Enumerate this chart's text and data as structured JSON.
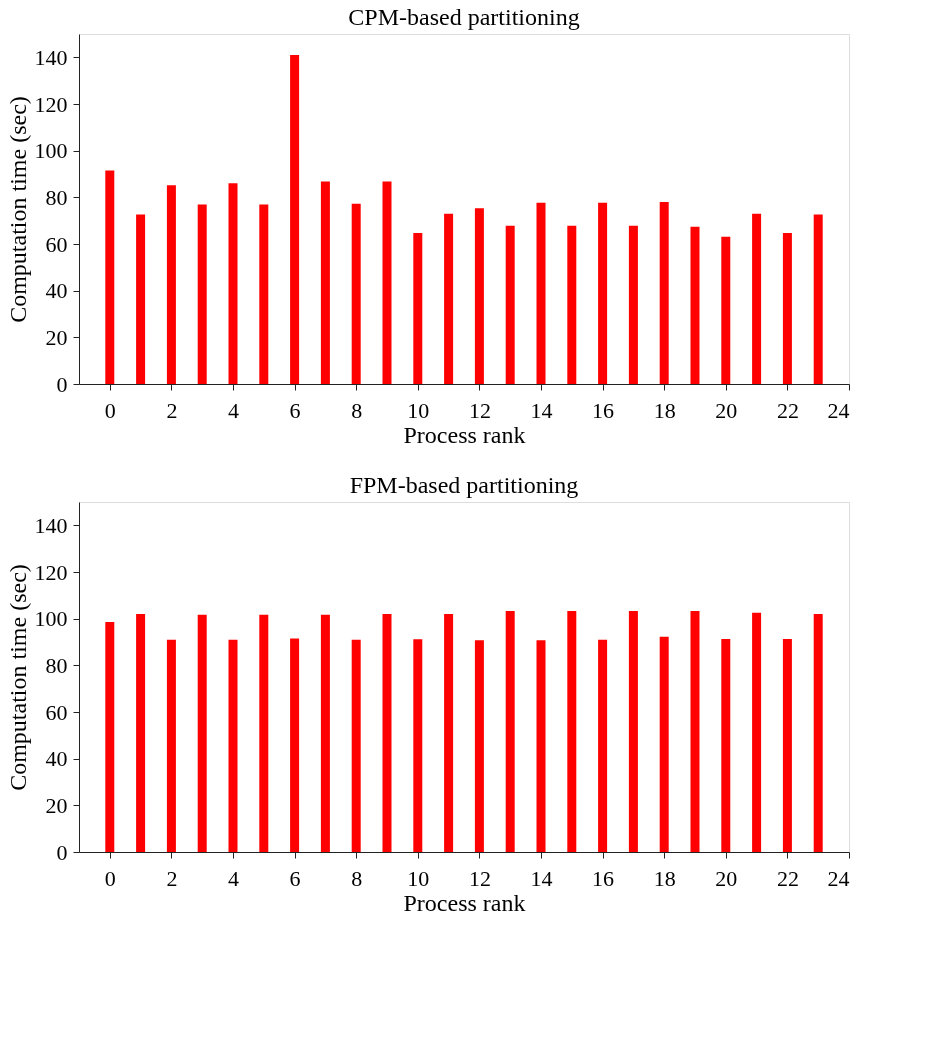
{
  "chart_data": [
    {
      "type": "bar",
      "title": "CPM-based partitioning",
      "xlabel": "Process rank",
      "ylabel": "Computation time (sec)",
      "x": [
        0,
        1,
        2,
        3,
        4,
        5,
        6,
        7,
        8,
        9,
        10,
        11,
        12,
        13,
        14,
        15,
        16,
        17,
        18,
        19,
        20,
        21,
        22,
        23
      ],
      "values": [
        91.5,
        72.6,
        85.2,
        76.9,
        86,
        76.9,
        141,
        86.8,
        77.3,
        86.8,
        64.7,
        73,
        75.3,
        67.8,
        77.7,
        67.8,
        77.7,
        67.8,
        78,
        67.4,
        63.1,
        73,
        64.7,
        72.6
      ],
      "color": "#ff0000",
      "xlim": [
        -1,
        24
      ],
      "xticks": [
        0,
        2,
        4,
        6,
        8,
        10,
        12,
        14,
        16,
        18,
        20,
        22,
        24
      ],
      "ylim": [
        0,
        150
      ],
      "yticks": [
        0,
        20,
        40,
        60,
        80,
        100,
        120,
        140
      ],
      "grid": false,
      "legend": false
    },
    {
      "type": "bar",
      "title": "FPM-based partitioning",
      "xlabel": "Process rank",
      "ylabel": "Computation time (sec)",
      "x": [
        0,
        1,
        2,
        3,
        4,
        5,
        6,
        7,
        8,
        9,
        10,
        11,
        12,
        13,
        14,
        15,
        16,
        17,
        18,
        19,
        20,
        21,
        22,
        23
      ],
      "values": [
        98.6,
        102,
        91,
        101.7,
        91,
        101.7,
        91.5,
        101.7,
        91,
        102,
        91.2,
        102,
        90.7,
        103.3,
        90.7,
        103.3,
        91,
        103.3,
        92.3,
        103.3,
        91.3,
        102.5,
        91.3,
        102
      ],
      "color": "#ff0000",
      "xlim": [
        -1,
        24
      ],
      "xticks": [
        0,
        2,
        4,
        6,
        8,
        10,
        12,
        14,
        16,
        18,
        20,
        22,
        24
      ],
      "ylim": [
        0,
        150
      ],
      "yticks": [
        0,
        20,
        40,
        60,
        80,
        100,
        120,
        140
      ],
      "grid": false,
      "legend": false
    }
  ]
}
